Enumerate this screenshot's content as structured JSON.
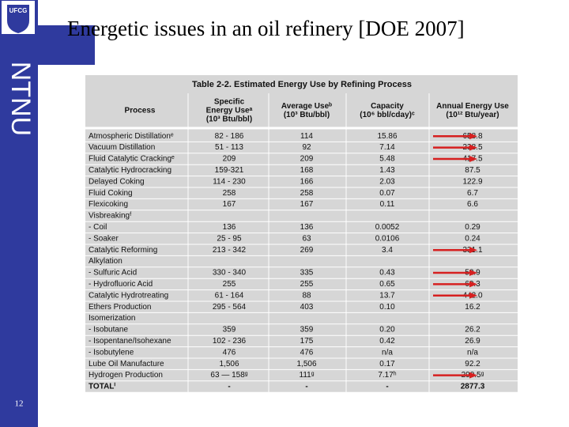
{
  "slide": {
    "title": "Energetic issues in an oil refinery [DOE 2007]",
    "logo": "UFCG",
    "side_label": "NTNU",
    "page_number": "12"
  },
  "table": {
    "caption": "Table 2-2. Estimated Energy Use by Refining Process",
    "header": [
      [
        "Process"
      ],
      [
        "Specific",
        "Energy Useᵃ",
        "(10³ Btu/bbl)"
      ],
      [
        "Average Useᵇ",
        "(10³ Btu/bbl)"
      ],
      [
        "Capacity",
        "(10⁶ bbl/cday)ᶜ"
      ],
      [
        "Annual Energy Use",
        "(10¹² Btu/year)"
      ]
    ],
    "rows": [
      {
        "cells": [
          "Atmospheric Distillationᵉ",
          "82 - 186",
          "114",
          "15.86",
          "658.8"
        ],
        "arrow": true
      },
      {
        "cells": [
          "Vacuum Distillation",
          "51 - 113",
          "92",
          "7.14",
          "238.5"
        ],
        "arrow": true
      },
      {
        "cells": [
          "Fluid Catalytic Crackingᵉ",
          "209",
          "209",
          "5.48",
          "417.5"
        ],
        "arrow": true
      },
      {
        "cells": [
          "Catalytic Hydrocracking",
          "159-321",
          "168",
          "1.43",
          "87.5"
        ],
        "arrow": false
      },
      {
        "cells": [
          "Delayed Coking",
          "114 - 230",
          "166",
          "2.03",
          "122.9"
        ],
        "arrow": false
      },
      {
        "cells": [
          "Fluid Coking",
          "258",
          "258",
          "0.07",
          "6.7"
        ],
        "arrow": false
      },
      {
        "cells": [
          "Flexicoking",
          "167",
          "167",
          "0.11",
          "6.6"
        ],
        "arrow": false
      },
      {
        "cells": [
          "Visbreakingᶠ"
        ],
        "arrow": false
      },
      {
        "cells": [
          "- Coil",
          "136",
          "136",
          "0.0052",
          "0.29"
        ],
        "arrow": false
      },
      {
        "cells": [
          "- Soaker",
          "25 - 95",
          "63",
          "0.0106",
          "0.24"
        ],
        "arrow": false
      },
      {
        "cells": [
          "Catalytic Reforming",
          "213 - 342",
          "269",
          "3.4",
          "331.1"
        ],
        "arrow": true
      },
      {
        "cells": [
          "Alkylation"
        ],
        "arrow": false
      },
      {
        "cells": [
          "- Sulfuric Acid",
          "330 - 340",
          "335",
          "0.43",
          "52.9"
        ],
        "arrow": true
      },
      {
        "cells": [
          "- Hydrofluoric Acid",
          "255",
          "255",
          "0.65",
          "60.3"
        ],
        "arrow": true
      },
      {
        "cells": [
          "Catalytic Hydrotreating",
          "61 - 164",
          "88",
          "13.7",
          "442.0"
        ],
        "arrow": true
      },
      {
        "cells": [
          "Ethers Production",
          "295 - 564",
          "403",
          "0.10",
          "16.2"
        ],
        "arrow": false
      },
      {
        "cells": [
          "Isomerization"
        ],
        "arrow": false
      },
      {
        "cells": [
          "- Isobutane",
          "359",
          "359",
          "0.20",
          "26.2"
        ],
        "arrow": false
      },
      {
        "cells": [
          "- Isopentane/Isohexane",
          "102 - 236",
          "175",
          "0.42",
          "26.9"
        ],
        "arrow": false
      },
      {
        "cells": [
          "- Isobutylene",
          "476",
          "476",
          "n/a",
          "n/a"
        ],
        "arrow": false
      },
      {
        "cells": [
          "Lube Oil Manufacture",
          "1,506",
          "1,506",
          "0.17",
          "92.2"
        ],
        "arrow": false
      },
      {
        "cells": [
          "Hydrogen Production",
          "63 — 158ᵍ",
          "111ᵍ",
          "7.17ʰ",
          "290.5ᵍ"
        ],
        "arrow": true
      },
      {
        "cells": [
          "TOTALⁱ",
          "-",
          "-",
          "-",
          "2877.3"
        ],
        "arrow": false
      }
    ]
  }
}
